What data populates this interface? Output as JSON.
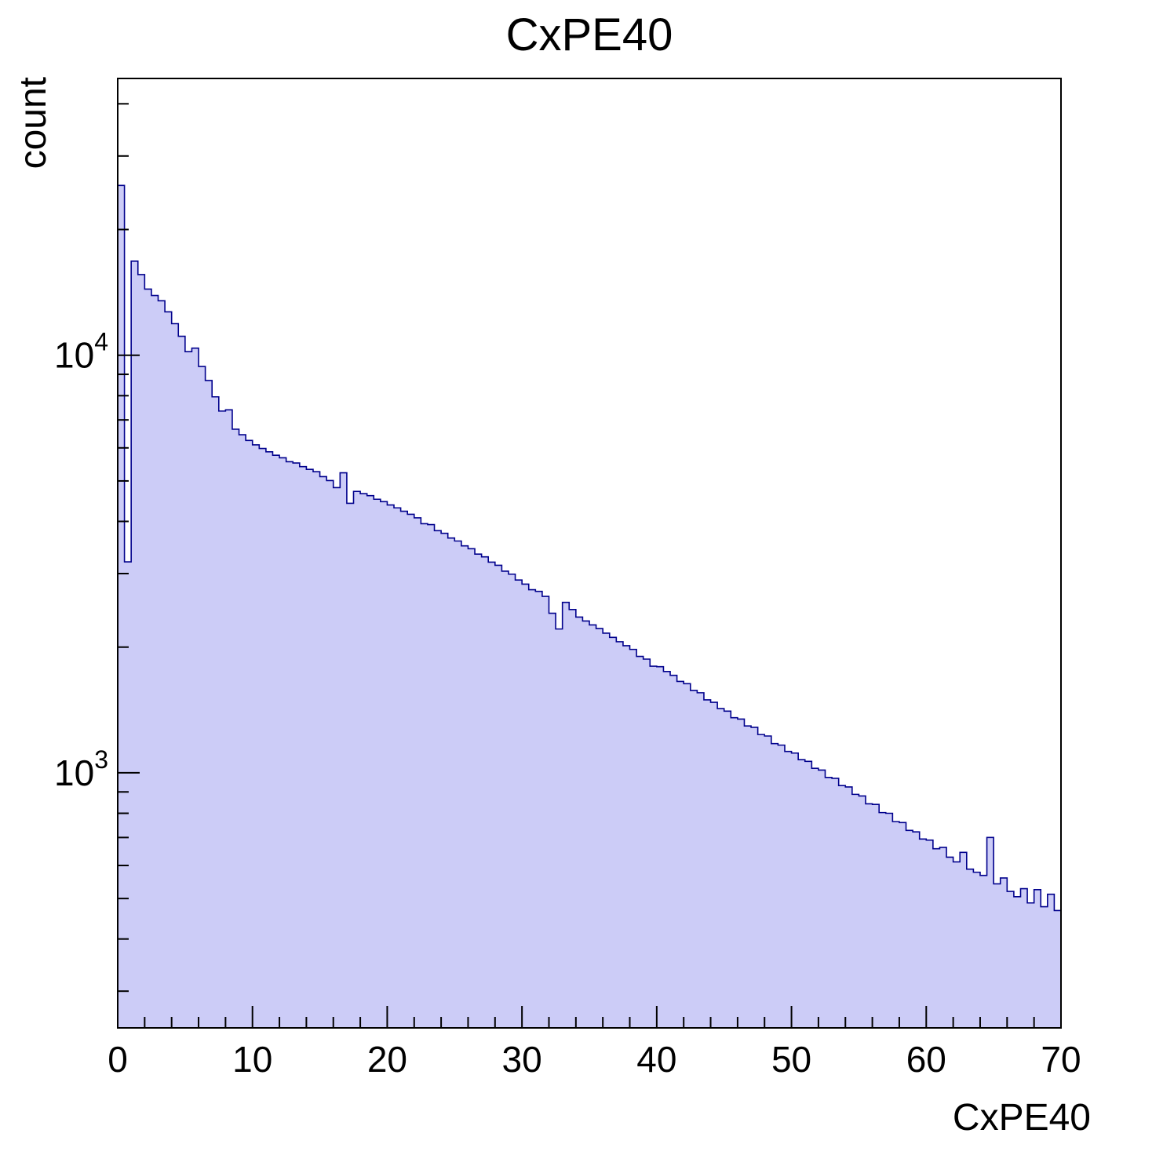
{
  "chart_data": {
    "type": "bar",
    "subtype": "histogram-step-filled",
    "title": "CxPE40",
    "xlabel": "CxPE40",
    "ylabel": "count",
    "xlim": [
      0,
      70
    ],
    "ylim": [
      245,
      46000
    ],
    "y_scale": "log",
    "grid": false,
    "legend": "none",
    "bin_start": 0,
    "bin_width": 0.5,
    "x_ticks": [
      {
        "value": 0,
        "label": "0"
      },
      {
        "value": 10,
        "label": "10"
      },
      {
        "value": 20,
        "label": "20"
      },
      {
        "value": 30,
        "label": "30"
      },
      {
        "value": 40,
        "label": "40"
      },
      {
        "value": 50,
        "label": "50"
      },
      {
        "value": 60,
        "label": "60"
      },
      {
        "value": 70,
        "label": "70"
      }
    ],
    "x_minor_tick_step": 2,
    "y_ticks": [
      {
        "value": 1000,
        "base": "10",
        "exp": "3"
      },
      {
        "value": 10000,
        "base": "10",
        "exp": "4"
      }
    ],
    "colors": {
      "fill": "#ccccf7",
      "line": "#00008c",
      "axis": "#000000",
      "background": "#ffffff"
    },
    "values": [
      25500,
      3200,
      16800,
      15600,
      14400,
      13900,
      13500,
      12700,
      11900,
      11100,
      10200,
      10400,
      9400,
      8700,
      7950,
      7350,
      7400,
      6650,
      6450,
      6250,
      6100,
      5980,
      5870,
      5760,
      5680,
      5560,
      5520,
      5410,
      5330,
      5260,
      5120,
      5010,
      4820,
      5230,
      4420,
      4720,
      4660,
      4610,
      4520,
      4460,
      4380,
      4310,
      4230,
      4160,
      4080,
      3950,
      3930,
      3800,
      3745,
      3650,
      3590,
      3495,
      3440,
      3340,
      3290,
      3195,
      3140,
      3040,
      2990,
      2895,
      2830,
      2745,
      2720,
      2645,
      2410,
      2210,
      2560,
      2460,
      2360,
      2310,
      2260,
      2215,
      2160,
      2110,
      2060,
      2015,
      1975,
      1900,
      1872,
      1800,
      1795,
      1748,
      1712,
      1655,
      1635,
      1575,
      1555,
      1495,
      1475,
      1425,
      1405,
      1355,
      1345,
      1295,
      1285,
      1235,
      1225,
      1175,
      1165,
      1125,
      1115,
      1075,
      1065,
      1025,
      1015,
      975,
      970,
      932,
      925,
      888,
      880,
      843,
      840,
      803,
      800,
      764,
      760,
      728,
      722,
      694,
      690,
      658,
      663,
      628,
      612,
      645,
      588,
      578,
      568,
      700,
      542,
      560,
      520,
      505,
      528,
      488,
      525,
      478,
      512,
      468
    ]
  }
}
